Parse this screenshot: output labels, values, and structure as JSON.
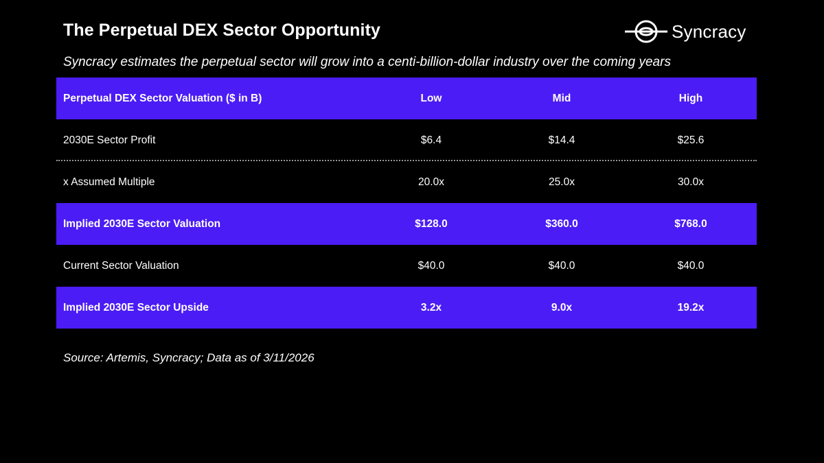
{
  "header": {
    "title": "The Perpetual DEX Sector Opportunity",
    "subtitle": "Syncracy estimates the perpetual sector will grow into a centi-billion-dollar industry over the coming years",
    "logo_text": "Syncracy",
    "logo_icon": "syncracy-ring-logo-icon"
  },
  "table": {
    "header": {
      "label": "Perpetual DEX Sector Valuation ($ in B)",
      "low": "Low",
      "mid": "Mid",
      "high": "High"
    },
    "rows": [
      {
        "label": "2030E Sector Profit",
        "low": "$6.4",
        "mid": "$14.4",
        "high": "$25.6",
        "highlight": false
      },
      {
        "label": "x Assumed Multiple",
        "low": "20.0x",
        "mid": "25.0x",
        "high": "30.0x",
        "highlight": false
      },
      {
        "label": "Implied 2030E Sector Valuation",
        "low": "$128.0",
        "mid": "$360.0",
        "high": "$768.0",
        "highlight": true
      },
      {
        "label": "Current Sector Valuation",
        "low": "$40.0",
        "mid": "$40.0",
        "high": "$40.0",
        "highlight": false
      },
      {
        "label": "Implied 2030E Sector Upside",
        "low": "3.2x",
        "mid": "9.0x",
        "high": "19.2x",
        "highlight": true
      }
    ]
  },
  "footer": {
    "source": "Source: Artemis, Syncracy; Data as of 3/11/2026"
  },
  "colors": {
    "background": "#000000",
    "highlight_row": "#4B1CF5",
    "text": "#FFFFFF",
    "separator": "#9A9A9A"
  }
}
